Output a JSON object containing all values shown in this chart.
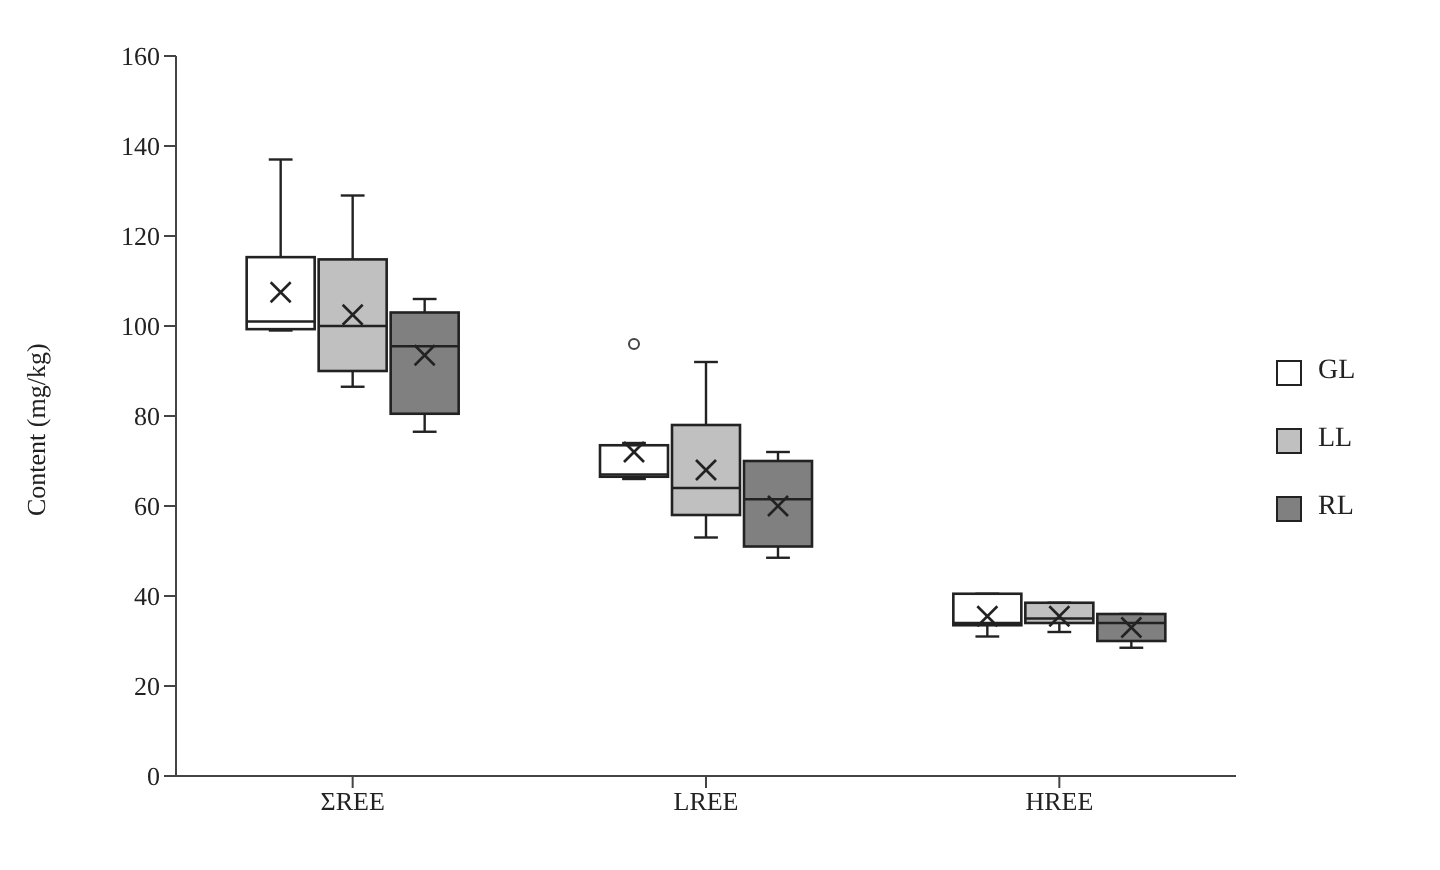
{
  "chart_data": {
    "type": "box",
    "ylabel": "Content (mg/kg)",
    "categories": [
      "ΣREE",
      "LREE",
      "HREE"
    ],
    "ylim": [
      0,
      160
    ],
    "yticks": [
      0,
      20,
      40,
      60,
      80,
      100,
      120,
      140,
      160
    ],
    "grid": false,
    "legend": "right",
    "series": [
      {
        "name": "GL",
        "color": "#ffffff",
        "boxes": [
          {
            "low": 99,
            "q1": 99.3,
            "median": 101,
            "q3": 115.3,
            "high": 137,
            "mean": 107.5
          },
          {
            "low": 66,
            "q1": 66.5,
            "median": 67,
            "q3": 73.5,
            "high": 74,
            "mean": 72,
            "outliers": [
              96
            ]
          },
          {
            "low": 31,
            "q1": 33.5,
            "median": 34,
            "q3": 40.5,
            "high": 40.5,
            "mean": 35.5
          }
        ]
      },
      {
        "name": "LL",
        "color": "#c0c0c0",
        "boxes": [
          {
            "low": 86.5,
            "q1": 90,
            "median": 100,
            "q3": 114.8,
            "high": 129,
            "mean": 102.5
          },
          {
            "low": 53,
            "q1": 58,
            "median": 64,
            "q3": 78,
            "high": 92,
            "mean": 68
          },
          {
            "low": 32,
            "q1": 34,
            "median": 35,
            "q3": 38.5,
            "high": 38.5,
            "mean": 35.5
          }
        ]
      },
      {
        "name": "RL",
        "color": "#808080",
        "boxes": [
          {
            "low": 76.5,
            "q1": 80.5,
            "median": 95.5,
            "q3": 103,
            "high": 106,
            "mean": 93.5
          },
          {
            "low": 48.5,
            "q1": 51,
            "median": 61.5,
            "q3": 70,
            "high": 72,
            "mean": 60
          },
          {
            "low": 28.5,
            "q1": 30,
            "median": 34,
            "q3": 36,
            "high": 36,
            "mean": 33
          }
        ]
      }
    ]
  }
}
